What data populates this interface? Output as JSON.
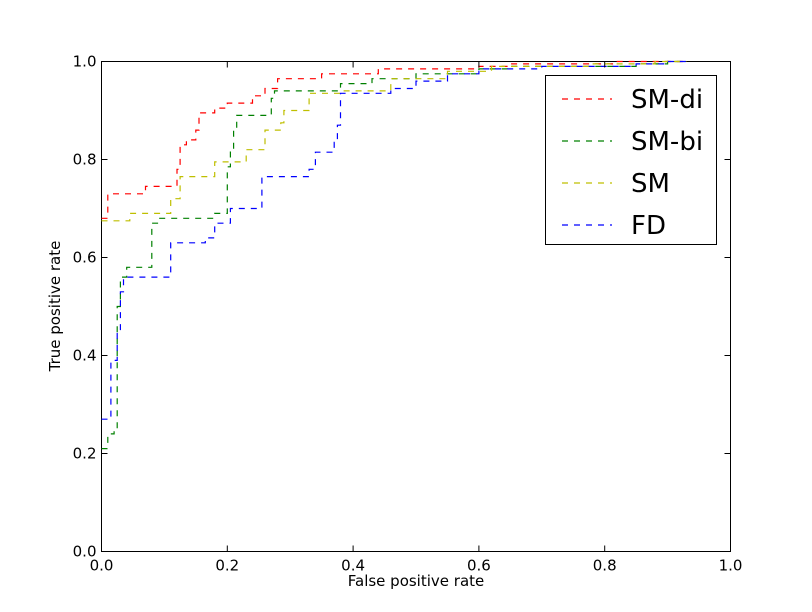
{
  "chart_data": {
    "type": "line",
    "xlabel": "False positive rate",
    "ylabel": "True positive rate",
    "xlim": [
      0.0,
      1.0
    ],
    "ylim": [
      0.0,
      1.0
    ],
    "x_ticks": [
      "0.0",
      "0.2",
      "0.4",
      "0.6",
      "0.8",
      "1.0"
    ],
    "y_ticks": [
      "0.0",
      "0.2",
      "0.4",
      "0.6",
      "0.8",
      "1.0"
    ],
    "grid": false,
    "legend_position": "top-right",
    "line_style": "dashed",
    "series": [
      {
        "name": "SM-di",
        "color": "#ff0000",
        "points": [
          [
            0.0,
            0.68
          ],
          [
            0.01,
            0.68
          ],
          [
            0.01,
            0.73
          ],
          [
            0.07,
            0.73
          ],
          [
            0.07,
            0.745
          ],
          [
            0.12,
            0.745
          ],
          [
            0.12,
            0.78
          ],
          [
            0.125,
            0.78
          ],
          [
            0.125,
            0.83
          ],
          [
            0.135,
            0.83
          ],
          [
            0.135,
            0.84
          ],
          [
            0.15,
            0.84
          ],
          [
            0.15,
            0.86
          ],
          [
            0.155,
            0.86
          ],
          [
            0.155,
            0.895
          ],
          [
            0.18,
            0.895
          ],
          [
            0.18,
            0.905
          ],
          [
            0.2,
            0.905
          ],
          [
            0.2,
            0.915
          ],
          [
            0.24,
            0.915
          ],
          [
            0.24,
            0.93
          ],
          [
            0.26,
            0.93
          ],
          [
            0.26,
            0.945
          ],
          [
            0.28,
            0.945
          ],
          [
            0.28,
            0.965
          ],
          [
            0.35,
            0.965
          ],
          [
            0.35,
            0.975
          ],
          [
            0.44,
            0.975
          ],
          [
            0.44,
            0.985
          ],
          [
            0.6,
            0.985
          ],
          [
            0.6,
            0.99
          ],
          [
            0.65,
            0.99
          ],
          [
            0.65,
            0.995
          ],
          [
            0.82,
            0.995
          ],
          [
            0.82,
            1.0
          ],
          [
            0.93,
            1.0
          ]
        ]
      },
      {
        "name": "SM-bi",
        "color": "#008000",
        "points": [
          [
            0.0,
            0.21
          ],
          [
            0.01,
            0.21
          ],
          [
            0.01,
            0.24
          ],
          [
            0.02,
            0.24
          ],
          [
            0.02,
            0.25
          ],
          [
            0.025,
            0.25
          ],
          [
            0.025,
            0.5
          ],
          [
            0.03,
            0.5
          ],
          [
            0.03,
            0.56
          ],
          [
            0.04,
            0.56
          ],
          [
            0.04,
            0.58
          ],
          [
            0.08,
            0.58
          ],
          [
            0.08,
            0.67
          ],
          [
            0.09,
            0.67
          ],
          [
            0.09,
            0.68
          ],
          [
            0.18,
            0.68
          ],
          [
            0.18,
            0.69
          ],
          [
            0.2,
            0.69
          ],
          [
            0.2,
            0.785
          ],
          [
            0.205,
            0.785
          ],
          [
            0.205,
            0.82
          ],
          [
            0.21,
            0.82
          ],
          [
            0.21,
            0.86
          ],
          [
            0.215,
            0.86
          ],
          [
            0.215,
            0.89
          ],
          [
            0.27,
            0.89
          ],
          [
            0.27,
            0.925
          ],
          [
            0.275,
            0.925
          ],
          [
            0.275,
            0.94
          ],
          [
            0.38,
            0.94
          ],
          [
            0.38,
            0.955
          ],
          [
            0.43,
            0.955
          ],
          [
            0.43,
            0.965
          ],
          [
            0.5,
            0.965
          ],
          [
            0.5,
            0.975
          ],
          [
            0.6,
            0.975
          ],
          [
            0.6,
            0.985
          ],
          [
            0.65,
            0.985
          ],
          [
            0.65,
            0.99
          ],
          [
            0.85,
            0.99
          ],
          [
            0.85,
            0.995
          ],
          [
            0.9,
            0.995
          ],
          [
            0.9,
            1.0
          ],
          [
            0.93,
            1.0
          ]
        ]
      },
      {
        "name": "SM",
        "color": "#bfbf00",
        "points": [
          [
            0.0,
            0.675
          ],
          [
            0.045,
            0.675
          ],
          [
            0.045,
            0.69
          ],
          [
            0.11,
            0.69
          ],
          [
            0.11,
            0.72
          ],
          [
            0.125,
            0.72
          ],
          [
            0.125,
            0.765
          ],
          [
            0.18,
            0.765
          ],
          [
            0.18,
            0.795
          ],
          [
            0.23,
            0.795
          ],
          [
            0.23,
            0.82
          ],
          [
            0.26,
            0.82
          ],
          [
            0.26,
            0.86
          ],
          [
            0.285,
            0.86
          ],
          [
            0.285,
            0.875
          ],
          [
            0.29,
            0.875
          ],
          [
            0.29,
            0.9
          ],
          [
            0.33,
            0.9
          ],
          [
            0.33,
            0.935
          ],
          [
            0.38,
            0.935
          ],
          [
            0.38,
            0.94
          ],
          [
            0.46,
            0.94
          ],
          [
            0.46,
            0.965
          ],
          [
            0.55,
            0.965
          ],
          [
            0.55,
            0.98
          ],
          [
            0.62,
            0.98
          ],
          [
            0.62,
            0.99
          ],
          [
            0.78,
            0.99
          ],
          [
            0.78,
            0.995
          ],
          [
            0.88,
            0.995
          ],
          [
            0.88,
            1.0
          ],
          [
            0.93,
            1.0
          ]
        ]
      },
      {
        "name": "FD",
        "color": "#0000ff",
        "points": [
          [
            0.0,
            0.27
          ],
          [
            0.015,
            0.27
          ],
          [
            0.015,
            0.39
          ],
          [
            0.025,
            0.39
          ],
          [
            0.025,
            0.45
          ],
          [
            0.03,
            0.45
          ],
          [
            0.03,
            0.53
          ],
          [
            0.035,
            0.53
          ],
          [
            0.035,
            0.56
          ],
          [
            0.11,
            0.56
          ],
          [
            0.11,
            0.63
          ],
          [
            0.165,
            0.63
          ],
          [
            0.165,
            0.64
          ],
          [
            0.18,
            0.64
          ],
          [
            0.18,
            0.67
          ],
          [
            0.205,
            0.67
          ],
          [
            0.205,
            0.7
          ],
          [
            0.255,
            0.7
          ],
          [
            0.255,
            0.765
          ],
          [
            0.33,
            0.765
          ],
          [
            0.33,
            0.78
          ],
          [
            0.34,
            0.78
          ],
          [
            0.34,
            0.815
          ],
          [
            0.37,
            0.815
          ],
          [
            0.37,
            0.835
          ],
          [
            0.375,
            0.835
          ],
          [
            0.375,
            0.87
          ],
          [
            0.38,
            0.87
          ],
          [
            0.38,
            0.935
          ],
          [
            0.46,
            0.935
          ],
          [
            0.46,
            0.945
          ],
          [
            0.5,
            0.945
          ],
          [
            0.5,
            0.96
          ],
          [
            0.55,
            0.96
          ],
          [
            0.55,
            0.975
          ],
          [
            0.6,
            0.975
          ],
          [
            0.6,
            0.985
          ],
          [
            0.7,
            0.985
          ],
          [
            0.7,
            0.99
          ],
          [
            0.85,
            0.99
          ],
          [
            0.85,
            0.995
          ],
          [
            0.9,
            0.995
          ],
          [
            0.9,
            1.0
          ],
          [
            0.93,
            1.0
          ]
        ]
      }
    ]
  }
}
